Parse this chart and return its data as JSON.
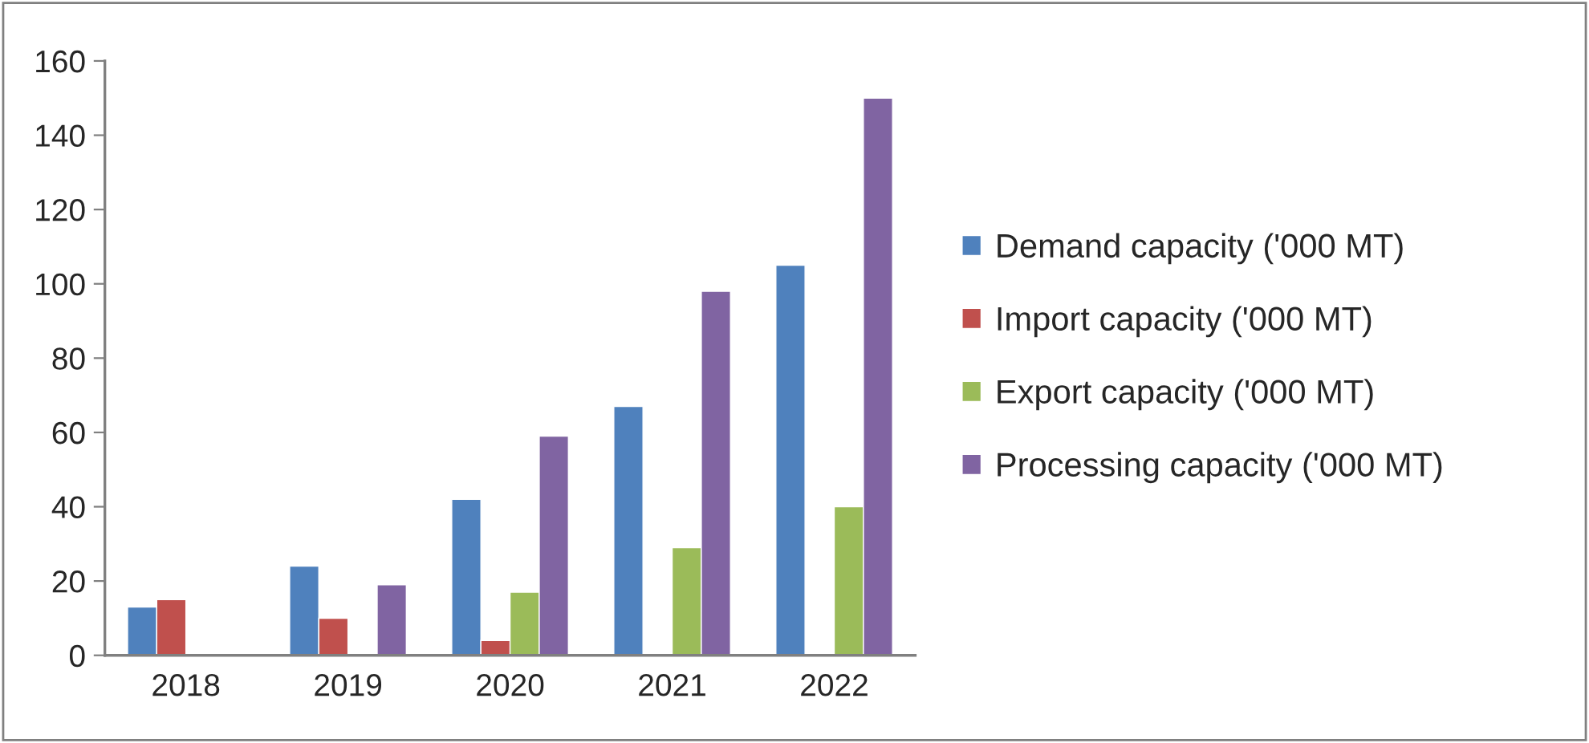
{
  "chart_data": {
    "type": "bar",
    "categories": [
      "2018",
      "2019",
      "2020",
      "2021",
      "2022"
    ],
    "series": [
      {
        "name": "Demand capacity ('000 MT)",
        "color": "#4f81bd",
        "values": [
          13,
          24,
          42,
          67,
          105
        ]
      },
      {
        "name": "Import capacity ('000 MT)",
        "color": "#c0504d",
        "values": [
          15,
          10,
          4,
          null,
          null
        ]
      },
      {
        "name": "Export capacity ('000 MT)",
        "color": "#9bbb59",
        "values": [
          null,
          null,
          17,
          29,
          40
        ]
      },
      {
        "name": "Processing capacity ('000 MT)",
        "color": "#8064a2",
        "values": [
          null,
          19,
          59,
          98,
          150
        ]
      }
    ],
    "ylim": [
      0,
      160
    ],
    "yticks": [
      0,
      20,
      40,
      60,
      80,
      100,
      120,
      140,
      160
    ],
    "grid": false,
    "legend": "right"
  }
}
